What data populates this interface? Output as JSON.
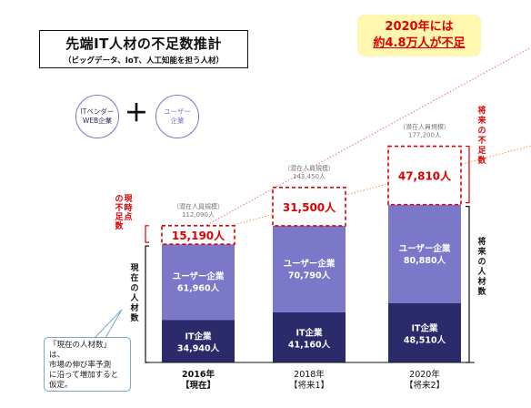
{
  "title": {
    "main": "先端IT人材の不足数推計",
    "sub": "（ビッグデータ、IoT、人工知能を担う人材）"
  },
  "callout": {
    "line1": "2020年には",
    "line2": "約4.8万人が不足"
  },
  "legend": {
    "it_circle": "ITベンダー\nWEB企業",
    "plus": "＋",
    "user_circle": "ユーザー\n企業"
  },
  "labels": {
    "left_shortage": "現時点の不足数",
    "left_current": "現在の人材数",
    "right_shortage": "将来の不足数",
    "right_future": "将来の人材数"
  },
  "note": "「現在の人材数」は、\n市場の伸び率予測\nに沿って増加すると\n仮定。",
  "colors": {
    "it": "#2b2b6b",
    "user": "#7b77c9",
    "shortage": "#e00000",
    "trend_pink": "#f06a8a",
    "trend_orange": "#f59a3c",
    "potential": "#777777"
  },
  "chart_data": {
    "type": "bar",
    "stacked": true,
    "categories": [
      "2016年\n【現在】",
      "2018年\n【将来1】",
      "2020年\n【将来2】"
    ],
    "series": [
      {
        "name": "IT企業",
        "unit": "人",
        "values": [
          34940,
          41160,
          48510
        ],
        "labels": [
          "IT企業\n34,940人",
          "IT企業\n41,160人",
          "IT企業\n48,510人"
        ]
      },
      {
        "name": "ユーザー企業",
        "unit": "人",
        "values": [
          61960,
          70790,
          80880
        ],
        "labels": [
          "ユーザー企業\n61,960人",
          "ユーザー企業\n70,790人",
          "ユーザー企業\n80,880人"
        ]
      },
      {
        "name": "不足数",
        "unit": "人",
        "values": [
          15190,
          31500,
          47810
        ],
        "labels": [
          "15,190人",
          "31,500人",
          "47,810人"
        ]
      }
    ],
    "potential_totals": [
      112090,
      143450,
      177200
    ],
    "potential_labels": [
      "（潜在人員規模）\n112,090人",
      "（潜在人員規模）\n143,450人",
      "（潜在人員規模）\n177,200人"
    ],
    "ylim": [
      0,
      195000
    ],
    "grid": false,
    "legend": "none"
  }
}
